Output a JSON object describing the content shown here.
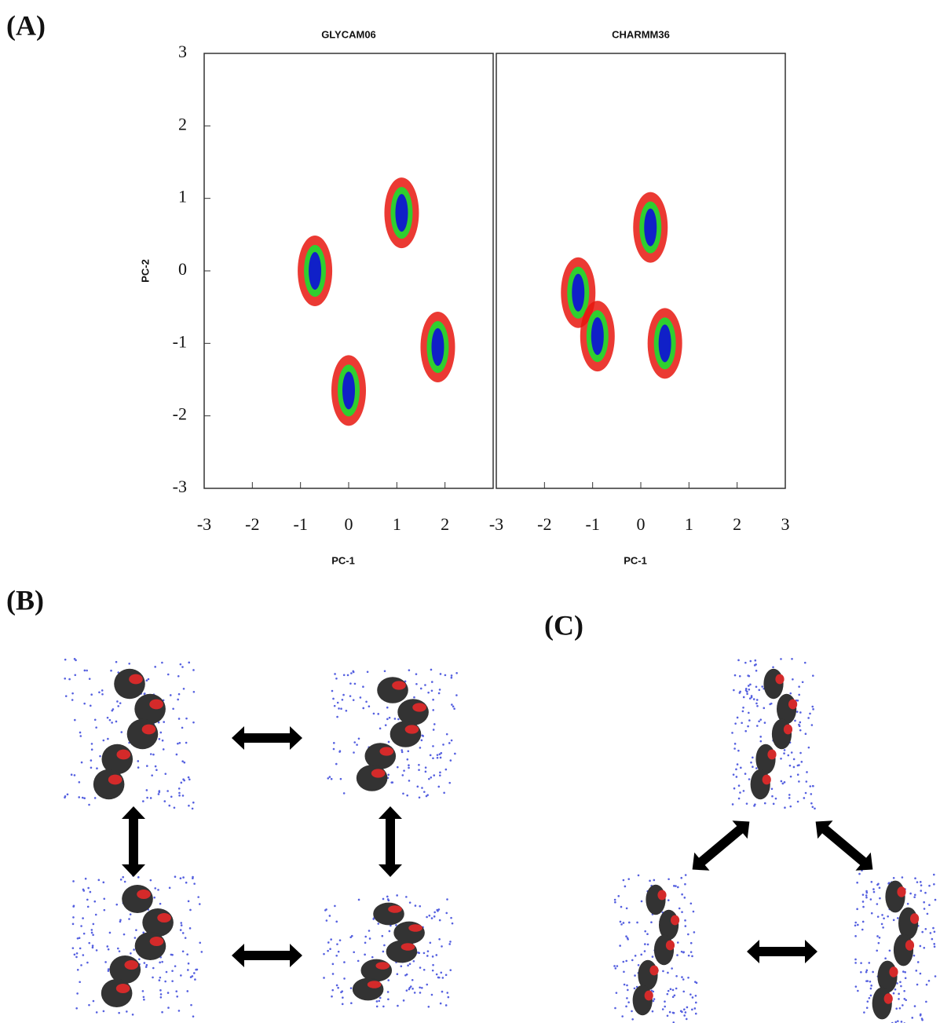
{
  "panel_labels": [
    "(A)",
    "(B)",
    "(C)"
  ],
  "chart_data": [
    {
      "type": "density",
      "title": "GLYCAM06",
      "xlabel": "PC-1",
      "ylabel": "PC-2",
      "x": [
        -0.7,
        1.1,
        1.85,
        0
      ],
      "values": [
        0.0,
        0.8,
        -1.05,
        -1.65
      ],
      "xlim": [
        -3,
        3
      ],
      "ylim": [
        -3,
        3
      ],
      "xticks": [
        -3,
        -2,
        -1,
        0,
        1,
        2
      ],
      "yticks": [
        -3,
        -2,
        -1,
        0,
        1,
        2,
        3
      ]
    },
    {
      "type": "density",
      "title": "CHARMM36",
      "xlabel": "PC-1",
      "x": [
        -1.3,
        0.2,
        0.5,
        -0.9
      ],
      "values": [
        -0.3,
        0.6,
        -1.0,
        -0.9
      ],
      "xlim": [
        -3,
        3
      ],
      "ylim": [
        -3,
        3
      ],
      "xticks": [
        -3,
        -2,
        -1,
        0,
        1,
        2,
        3
      ]
    }
  ]
}
